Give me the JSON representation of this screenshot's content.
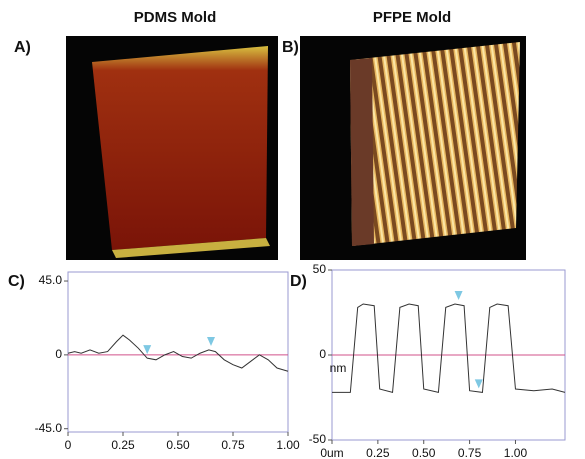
{
  "panels": [
    {
      "label": "A)",
      "title": "PDMS Mold"
    },
    {
      "label": "B)",
      "title": "PFPE Mold"
    }
  ],
  "chart_data": [
    {
      "type": "line",
      "label": "C)",
      "x": [
        0,
        0.03,
        0.06,
        0.1,
        0.14,
        0.18,
        0.22,
        0.25,
        0.28,
        0.32,
        0.36,
        0.4,
        0.44,
        0.48,
        0.52,
        0.56,
        0.6,
        0.64,
        0.67,
        0.71,
        0.75,
        0.79,
        0.83,
        0.87,
        0.91,
        0.95,
        1.0
      ],
      "values": [
        1,
        2,
        1,
        3,
        1,
        2,
        8,
        12,
        9,
        4,
        -2,
        -3,
        0,
        2,
        -1,
        -2,
        1,
        3,
        2,
        -3,
        -6,
        -8,
        -4,
        0,
        -3,
        -8,
        -10
      ],
      "color": "#333333",
      "xlim": [
        0,
        1
      ],
      "xticks": [
        0,
        0.25,
        {
          "value": 0.5,
          "label": "0.50"
        },
        0.75,
        {
          "value": 1,
          "label": "1.00"
        }
      ],
      "ylim": [
        -47,
        50.5
      ],
      "yticks": [
        {
          "value": -45,
          "label": "-45.0"
        },
        0,
        {
          "value": 45,
          "label": "45.0"
        }
      ],
      "zero_line_color": "#d0508a",
      "frame_color": "#9a9ad0",
      "markers": {
        "x": [
          0.36,
          0.65
        ],
        "y": [
          -2,
          3
        ],
        "color": "#7ec8e3"
      }
    },
    {
      "type": "line",
      "label": "D)",
      "ylabel": "nm",
      "x": [
        0,
        0.1,
        0.14,
        0.17,
        0.23,
        0.26,
        0.33,
        0.37,
        0.42,
        0.47,
        0.5,
        0.58,
        0.62,
        0.67,
        0.72,
        0.75,
        0.82,
        0.86,
        0.9,
        0.96,
        1.0,
        1.1,
        1.2,
        1.27
      ],
      "values": [
        -22,
        -22,
        28,
        30,
        29,
        -20,
        -22,
        28,
        30,
        29,
        -20,
        -22,
        28,
        30,
        29,
        -21,
        -22,
        28,
        30,
        29,
        -20,
        -21,
        -20,
        -22
      ],
      "color": "#333333",
      "xlim": [
        0,
        1.27
      ],
      "xticks": [
        {
          "value": 0,
          "label": "0um"
        },
        0.25,
        {
          "value": 0.5,
          "label": "0.50"
        },
        0.75,
        {
          "value": 1,
          "label": "1.00"
        }
      ],
      "ylim": [
        -50,
        50
      ],
      "yticks": [
        -50,
        0,
        50
      ],
      "zero_line_color": "#d0508a",
      "frame_color": "#9a9ad0",
      "markers": {
        "x": [
          0.69,
          0.8
        ],
        "y": [
          30,
          -22
        ],
        "color": "#7ec8e3"
      }
    }
  ]
}
